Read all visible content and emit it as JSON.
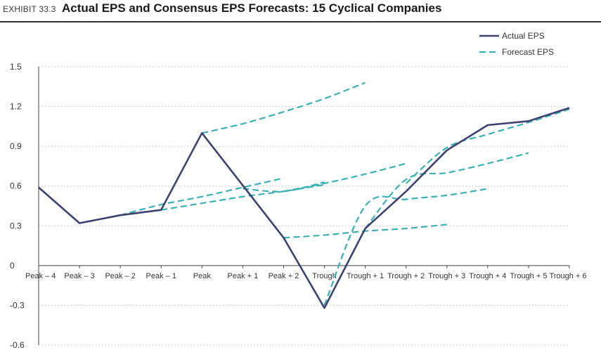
{
  "header": {
    "exhibit": "EXHIBIT 33.3",
    "title": "Actual EPS and Consensus EPS Forecasts: 15 Cyclical Companies"
  },
  "colors": {
    "actual": "#3d4270",
    "forecast": "#3bb0b5",
    "grid": "#b8b8b8",
    "axis": "#444444"
  },
  "chart_data": {
    "type": "line",
    "title": "Actual EPS and Consensus EPS Forecasts: 15 Cyclical Companies",
    "xlabel": "",
    "ylabel": "",
    "categories": [
      "Peak – 4",
      "Peak – 3",
      "Peak – 2",
      "Peak – 1",
      "Peak",
      "Peak + 1",
      "Peak + 2",
      "Trough",
      "Trough + 1",
      "Trough + 2",
      "Trough + 3",
      "Trough + 4",
      "Trough + 5",
      "Trough + 6"
    ],
    "ylim": [
      -0.6,
      1.5
    ],
    "yticks": [
      {
        "value": 1.5,
        "label": "1.5"
      },
      {
        "value": 1.2,
        "label": "1.2"
      },
      {
        "value": 0.9,
        "label": "0.9"
      },
      {
        "value": 0.6,
        "label": "0.6"
      },
      {
        "value": 0.3,
        "label": "0.3"
      },
      {
        "value": 0,
        "label": "0"
      },
      {
        "value": -0.3,
        "label": "-0.3"
      },
      {
        "value": -0.6,
        "label": "-0.6"
      }
    ],
    "grid": true,
    "legend_position": "top-right",
    "series": [
      {
        "name": "Actual EPS",
        "style": "solid",
        "points": [
          [
            0,
            0.59
          ],
          [
            1,
            0.32
          ],
          [
            2,
            0.38
          ],
          [
            3,
            0.42
          ],
          [
            4,
            1.0
          ],
          [
            6,
            0.21
          ],
          [
            7,
            -0.32
          ],
          [
            8,
            0.28
          ],
          [
            9,
            0.56
          ],
          [
            10,
            0.87
          ],
          [
            11,
            1.06
          ],
          [
            12,
            1.09
          ],
          [
            13,
            1.19
          ]
        ]
      },
      {
        "name": "Forecast EPS",
        "style": "dashed",
        "paths": [
          [
            [
              2,
              0.38
            ],
            [
              3,
              0.46
            ],
            [
              4,
              0.52
            ],
            [
              5,
              0.59
            ],
            [
              6,
              0.66
            ]
          ],
          [
            [
              3,
              0.42
            ],
            [
              4,
              0.47
            ],
            [
              5,
              0.52
            ],
            [
              6,
              0.56
            ],
            [
              7,
              0.61
            ]
          ],
          [
            [
              4,
              1.0
            ],
            [
              5,
              1.07
            ],
            [
              6,
              1.16
            ],
            [
              7,
              1.26
            ],
            [
              8,
              1.38
            ]
          ],
          [
            [
              5,
              0.58
            ],
            [
              6,
              0.56
            ],
            [
              7,
              0.63
            ]
          ],
          [
            [
              6,
              0.56
            ],
            [
              7,
              0.62
            ],
            [
              8,
              0.69
            ],
            [
              9,
              0.77
            ]
          ],
          [
            [
              6,
              0.21
            ],
            [
              7,
              0.23
            ],
            [
              8,
              0.26
            ],
            [
              9,
              0.28
            ],
            [
              10,
              0.31
            ]
          ],
          [
            [
              7,
              -0.3
            ],
            [
              8,
              0.45
            ],
            [
              9,
              0.5
            ],
            [
              10,
              0.53
            ],
            [
              11,
              0.58
            ]
          ],
          [
            [
              8,
              0.28
            ],
            [
              9,
              0.65
            ],
            [
              10,
              0.7
            ],
            [
              11,
              0.77
            ],
            [
              12,
              0.85
            ]
          ],
          [
            [
              9,
              0.62
            ],
            [
              10,
              0.89
            ],
            [
              11,
              0.99
            ],
            [
              12,
              1.08
            ],
            [
              13,
              1.18
            ]
          ]
        ]
      }
    ]
  }
}
